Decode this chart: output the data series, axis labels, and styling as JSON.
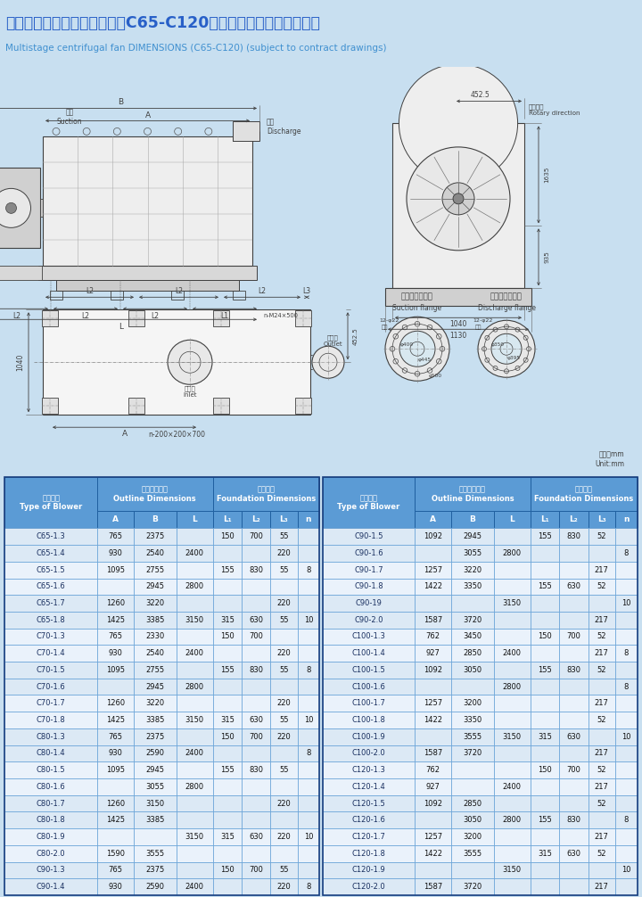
{
  "title_cn": "多级离心风机外形安装尺寸（C65-C120）（以合同提供图纸为准）",
  "title_en": "Multistage centrifugal fan DIMENSIONS (C65-C120) (subject to contract drawings)",
  "bg_color": "#c8dff0",
  "header_bg": "#5b9bd5",
  "header_text": "#ffffff",
  "alt1": "#dce9f5",
  "alt2": "#eaf2fb",
  "rows_left": [
    [
      "C65-1.3",
      "765",
      "2375",
      "",
      "150",
      "700",
      "55",
      ""
    ],
    [
      "C65-1.4",
      "930",
      "2540",
      "2400",
      "",
      "",
      "220",
      ""
    ],
    [
      "C65-1.5",
      "1095",
      "2755",
      "",
      "155",
      "830",
      "55",
      "8"
    ],
    [
      "C65-1.6",
      "",
      "2945",
      "2800",
      "",
      "",
      "",
      ""
    ],
    [
      "C65-1.7",
      "1260",
      "3220",
      "",
      "",
      "",
      "220",
      ""
    ],
    [
      "C65-1.8",
      "1425",
      "3385",
      "3150",
      "315",
      "630",
      "55",
      "10"
    ],
    [
      "C70-1.3",
      "765",
      "2330",
      "",
      "150",
      "700",
      "",
      ""
    ],
    [
      "C70-1.4",
      "930",
      "2540",
      "2400",
      "",
      "",
      "220",
      ""
    ],
    [
      "C70-1.5",
      "1095",
      "2755",
      "",
      "155",
      "830",
      "55",
      "8"
    ],
    [
      "C70-1.6",
      "",
      "2945",
      "2800",
      "",
      "",
      "",
      ""
    ],
    [
      "C70-1.7",
      "1260",
      "3220",
      "",
      "",
      "",
      "220",
      ""
    ],
    [
      "C70-1.8",
      "1425",
      "3385",
      "3150",
      "315",
      "630",
      "55",
      "10"
    ],
    [
      "C80-1.3",
      "765",
      "2375",
      "",
      "150",
      "700",
      "220",
      ""
    ],
    [
      "C80-1.4",
      "930",
      "2590",
      "2400",
      "",
      "",
      "",
      "8"
    ],
    [
      "C80-1.5",
      "1095",
      "2945",
      "",
      "155",
      "830",
      "55",
      ""
    ],
    [
      "C80-1.6",
      "",
      "3055",
      "2800",
      "",
      "",
      "",
      ""
    ],
    [
      "C80-1.7",
      "1260",
      "3150",
      "",
      "",
      "",
      "220",
      ""
    ],
    [
      "C80-1.8",
      "1425",
      "3385",
      "",
      "",
      "",
      "",
      ""
    ],
    [
      "C80-1.9",
      "",
      "",
      "3150",
      "315",
      "630",
      "220",
      "10"
    ],
    [
      "C80-2.0",
      "1590",
      "3555",
      "",
      "",
      "",
      "",
      ""
    ],
    [
      "C90-1.3",
      "765",
      "2375",
      "",
      "150",
      "700",
      "55",
      ""
    ],
    [
      "C90-1.4",
      "930",
      "2590",
      "2400",
      "",
      "",
      "220",
      "8"
    ]
  ],
  "rows_right": [
    [
      "C90-1.5",
      "1092",
      "2945",
      "",
      "155",
      "830",
      "52",
      ""
    ],
    [
      "C90-1.6",
      "",
      "3055",
      "2800",
      "",
      "",
      "",
      "8"
    ],
    [
      "C90-1.7",
      "1257",
      "3220",
      "",
      "",
      "",
      "217",
      ""
    ],
    [
      "C90-1.8",
      "1422",
      "3350",
      "",
      "155",
      "630",
      "52",
      ""
    ],
    [
      "C90-19",
      "",
      "",
      "3150",
      "",
      "",
      "",
      "10"
    ],
    [
      "C90-2.0",
      "1587",
      "3720",
      "",
      "",
      "",
      "217",
      ""
    ],
    [
      "C100-1.3",
      "762",
      "3450",
      "",
      "150",
      "700",
      "52",
      ""
    ],
    [
      "C100-1.4",
      "927",
      "2850",
      "2400",
      "",
      "",
      "217",
      "8"
    ],
    [
      "C100-1.5",
      "1092",
      "3050",
      "",
      "155",
      "830",
      "52",
      ""
    ],
    [
      "C100-1.6",
      "",
      "",
      "2800",
      "",
      "",
      "",
      "8"
    ],
    [
      "C100-1.7",
      "1257",
      "3200",
      "",
      "",
      "",
      "217",
      ""
    ],
    [
      "C100-1.8",
      "1422",
      "3350",
      "",
      "",
      "",
      "52",
      ""
    ],
    [
      "C100-1.9",
      "",
      "3555",
      "3150",
      "315",
      "630",
      "",
      "10"
    ],
    [
      "C100-2.0",
      "1587",
      "3720",
      "",
      "",
      "",
      "217",
      ""
    ],
    [
      "C120-1.3",
      "762",
      "",
      "",
      "150",
      "700",
      "52",
      ""
    ],
    [
      "C120-1.4",
      "927",
      "",
      "2400",
      "",
      "",
      "217",
      ""
    ],
    [
      "C120-1.5",
      "1092",
      "2850",
      "",
      "",
      "",
      "52",
      ""
    ],
    [
      "C120-1.6",
      "",
      "3050",
      "2800",
      "155",
      "830",
      "",
      "8"
    ],
    [
      "C120-1.7",
      "1257",
      "3200",
      "",
      "",
      "",
      "217",
      ""
    ],
    [
      "C120-1.8",
      "1422",
      "3555",
      "",
      "315",
      "630",
      "52",
      ""
    ],
    [
      "C120-1.9",
      "",
      "",
      "3150",
      "",
      "",
      "",
      "10"
    ],
    [
      "C120-2.0",
      "1587",
      "3720",
      "",
      "",
      "",
      "217",
      ""
    ]
  ]
}
